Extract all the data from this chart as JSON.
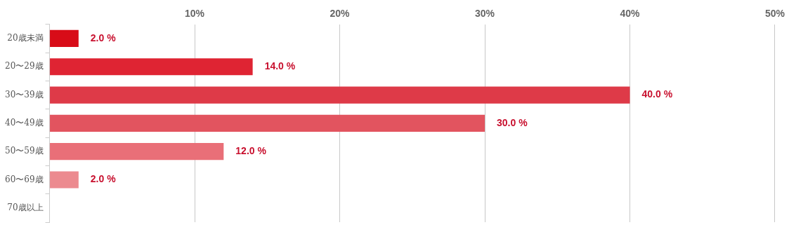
{
  "chart_data": {
    "type": "bar",
    "orientation": "horizontal",
    "categories": [
      "20歳未満",
      "20〜29歳",
      "30〜39歳",
      "40〜49歳",
      "50〜59歳",
      "60〜69歳",
      "70歳以上"
    ],
    "values": [
      2,
      14,
      40,
      30,
      12,
      2,
      0
    ],
    "colors": [
      "#d80c18",
      "#df2433",
      "#de3a48",
      "#e2545f",
      "#e96f78",
      "#ec8a8f",
      "#f0a0a5"
    ],
    "value_labels": [
      "2.0 %",
      "14.0 %",
      "40.0 %",
      "30.0 %",
      "12.0 %",
      "2.0 %",
      null
    ],
    "xlim": [
      0,
      50
    ],
    "xticks": [
      {
        "value": 0,
        "label": null
      },
      "10%",
      "20%",
      "30%",
      "40%",
      "50%"
    ],
    "grid": "x"
  }
}
